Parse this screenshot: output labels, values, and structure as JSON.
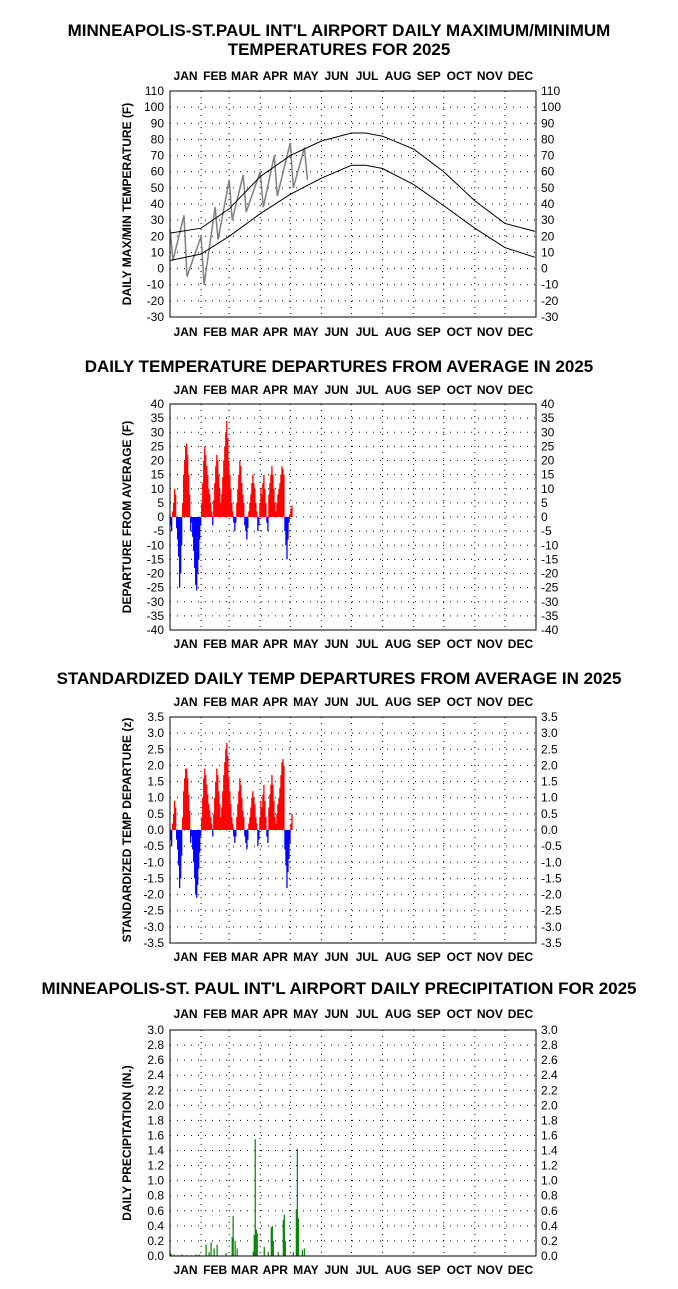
{
  "chart_data": [
    {
      "type": "line",
      "title_lines": [
        "MINNEAPOLIS-ST.PAUL INT'L AIRPORT DAILY MAXIMUM/MINIMUM",
        "TEMPERATURES FOR 2025"
      ],
      "ylabel": "DAILY MAX/MIN TEMPERATURE (F)",
      "months": [
        "JAN",
        "FEB",
        "MAR",
        "APR",
        "MAY",
        "JUN",
        "JUL",
        "AUG",
        "SEP",
        "OCT",
        "NOV",
        "DEC"
      ],
      "ylim": [
        -30,
        110
      ],
      "yticks": [
        "110",
        "100",
        "90",
        "80",
        "70",
        "60",
        "50",
        "40",
        "30",
        "20",
        "10",
        "0",
        "-10",
        "-20",
        "-30"
      ],
      "grid": true,
      "series": [
        {
          "role": "observed-high-low",
          "color": "#808080",
          "x": [
            1,
            15,
            32,
            46,
            60,
            74,
            91,
            105,
            121,
            135
          ],
          "high": [
            25,
            33,
            20,
            38,
            55,
            58,
            60,
            70,
            78,
            75
          ],
          "low": [
            5,
            -5,
            -10,
            18,
            30,
            35,
            38,
            45,
            50,
            55
          ]
        },
        {
          "role": "normal-high",
          "color": "#000000",
          "x": [
            1,
            32,
            60,
            91,
            121,
            152,
            182,
            196,
            213,
            244,
            274,
            305,
            335,
            365
          ],
          "values": [
            22,
            25,
            37,
            57,
            70,
            79,
            84,
            84,
            82,
            74,
            60,
            42,
            28,
            23
          ]
        },
        {
          "role": "normal-low",
          "color": "#000000",
          "x": [
            1,
            32,
            60,
            91,
            121,
            152,
            182,
            196,
            213,
            244,
            274,
            305,
            335,
            365
          ],
          "values": [
            5,
            9,
            20,
            34,
            46,
            56,
            64,
            64,
            62,
            52,
            39,
            25,
            13,
            7
          ]
        }
      ]
    },
    {
      "type": "bar",
      "title_lines": [
        "DAILY TEMPERATURE DEPARTURES FROM AVERAGE IN 2025"
      ],
      "ylabel": "DEPARTURE FROM AVERAGE (F)",
      "months": [
        "JAN",
        "FEB",
        "MAR",
        "APR",
        "MAY",
        "JUN",
        "JUL",
        "AUG",
        "SEP",
        "OCT",
        "NOV",
        "DEC"
      ],
      "ylim": [
        -40,
        40
      ],
      "yticks": [
        "40",
        "35",
        "30",
        "25",
        "20",
        "15",
        "10",
        "5",
        "0",
        "-5",
        "-10",
        "-15",
        "-20",
        "-25",
        "-30",
        "-35",
        "-40"
      ],
      "grid": true,
      "positive_color": "#ff0000",
      "negative_color": "#0000ff",
      "x_start_day": 1,
      "values": [
        -3,
        -5,
        2,
        5,
        10,
        8,
        -4,
        -8,
        -14,
        -25,
        -20,
        -10,
        5,
        15,
        20,
        25,
        26,
        22,
        15,
        8,
        -5,
        -2,
        -7,
        -12,
        -18,
        -24,
        -26,
        -20,
        -15,
        -8,
        -3,
        5,
        12,
        20,
        25,
        22,
        18,
        15,
        10,
        8,
        5,
        2,
        -3,
        6,
        12,
        18,
        22,
        20,
        15,
        10,
        5,
        8,
        14,
        20,
        25,
        30,
        34,
        28,
        20,
        15,
        10,
        5,
        2,
        -2,
        -5,
        -2,
        5,
        10,
        15,
        20,
        18,
        12,
        8,
        5,
        -3,
        -5,
        -8,
        -4,
        2,
        5,
        8,
        12,
        15,
        12,
        10,
        5,
        2,
        -5,
        -3,
        5,
        10,
        8,
        12,
        15,
        10,
        5,
        -2,
        -5,
        8,
        12,
        15,
        18,
        15,
        10,
        5,
        2,
        5,
        8,
        10,
        12,
        15,
        18,
        17,
        15,
        -5,
        -10,
        -15,
        -8,
        -2,
        1,
        3,
        4
      ]
    },
    {
      "type": "bar",
      "title_lines": [
        "STANDARDIZED DAILY TEMP DEPARTURES FROM AVERAGE IN 2025"
      ],
      "ylabel": "STANDARDIZED TEMP DEPARTURE (z)",
      "months": [
        "JAN",
        "FEB",
        "MAR",
        "APR",
        "MAY",
        "JUN",
        "JUL",
        "AUG",
        "SEP",
        "OCT",
        "NOV",
        "DEC"
      ],
      "ylim": [
        -3.5,
        3.5
      ],
      "yticks": [
        "3.5",
        "3.0",
        "2.5",
        "2.0",
        "1.5",
        "1.0",
        "0.5",
        "0.0",
        "-0.5",
        "-1.0",
        "-1.5",
        "-2.0",
        "-2.5",
        "-3.0",
        "-3.5"
      ],
      "grid": true,
      "positive_color": "#ff0000",
      "negative_color": "#0000ff",
      "x_start_day": 1,
      "values": [
        -0.3,
        -0.5,
        0.2,
        0.5,
        0.9,
        0.7,
        -0.3,
        -0.6,
        -1.1,
        -1.8,
        -1.5,
        -0.8,
        0.4,
        1.2,
        1.6,
        1.9,
        1.9,
        1.6,
        1.1,
        0.6,
        -0.4,
        -0.2,
        -0.6,
        -1.0,
        -1.5,
        -2.0,
        -2.1,
        -1.7,
        -1.2,
        -0.7,
        -0.2,
        0.4,
        1.0,
        1.6,
        1.9,
        1.7,
        1.4,
        1.1,
        0.8,
        0.6,
        0.4,
        0.2,
        -0.2,
        0.5,
        1.0,
        1.5,
        1.9,
        1.7,
        1.2,
        0.8,
        0.4,
        0.7,
        1.2,
        1.7,
        2.1,
        2.5,
        2.7,
        2.3,
        1.6,
        1.2,
        0.8,
        0.4,
        0.2,
        -0.2,
        -0.4,
        -0.2,
        0.4,
        0.8,
        1.2,
        1.6,
        1.4,
        1.0,
        0.6,
        0.4,
        -0.2,
        -0.4,
        -0.6,
        -0.3,
        0.2,
        0.4,
        0.7,
        1.0,
        1.2,
        1.0,
        0.8,
        0.4,
        0.2,
        -0.5,
        -0.3,
        0.4,
        0.9,
        0.7,
        1.1,
        1.4,
        0.9,
        0.4,
        -0.2,
        -0.4,
        0.7,
        1.1,
        1.4,
        1.7,
        1.4,
        0.9,
        0.4,
        0.2,
        0.5,
        0.8,
        1.0,
        1.3,
        1.7,
        2.1,
        2.2,
        2.0,
        -0.6,
        -1.1,
        -1.8,
        -1.3,
        -0.9,
        -0.4,
        0.2,
        0.5
      ]
    },
    {
      "type": "bar",
      "title_lines": [
        "MINNEAPOLIS-ST. PAUL INT'L AIRPORT DAILY PRECIPITATION FOR 2025"
      ],
      "ylabel": "DAILY PRECIPITATION (IN.)",
      "months": [
        "JAN",
        "FEB",
        "MAR",
        "APR",
        "MAY",
        "JUN",
        "JUL",
        "AUG",
        "SEP",
        "OCT",
        "NOV",
        "DEC"
      ],
      "ylim": [
        0,
        3.0
      ],
      "yticks": [
        "3.0",
        "2.8",
        "2.6",
        "2.4",
        "2.2",
        "2.0",
        "1.8",
        "1.6",
        "1.4",
        "1.2",
        "1.0",
        "0.8",
        "0.6",
        "0.4",
        "0.2",
        "0.0"
      ],
      "grid": true,
      "positive_color": "#008000",
      "points": [
        {
          "day": 1,
          "value": 0.05
        },
        {
          "day": 2,
          "value": 0.03
        },
        {
          "day": 5,
          "value": 0.02
        },
        {
          "day": 9,
          "value": 0.01
        },
        {
          "day": 13,
          "value": 0.02
        },
        {
          "day": 18,
          "value": 0.01
        },
        {
          "day": 22,
          "value": 0.01
        },
        {
          "day": 27,
          "value": 0.02
        },
        {
          "day": 30,
          "value": 0.02
        },
        {
          "day": 37,
          "value": 0.15
        },
        {
          "day": 40,
          "value": 0.05
        },
        {
          "day": 42,
          "value": 0.18
        },
        {
          "day": 45,
          "value": 0.1
        },
        {
          "day": 48,
          "value": 0.15
        },
        {
          "day": 57,
          "value": 0.04
        },
        {
          "day": 63,
          "value": 0.25
        },
        {
          "day": 64,
          "value": 0.53
        },
        {
          "day": 66,
          "value": 0.2
        },
        {
          "day": 68,
          "value": 0.1
        },
        {
          "day": 84,
          "value": 0.06
        },
        {
          "day": 85,
          "value": 0.28
        },
        {
          "day": 86,
          "value": 1.55
        },
        {
          "day": 87,
          "value": 0.35
        },
        {
          "day": 88,
          "value": 0.3
        },
        {
          "day": 95,
          "value": 0.12
        },
        {
          "day": 99,
          "value": 0.05
        },
        {
          "day": 102,
          "value": 0.38
        },
        {
          "day": 103,
          "value": 0.4
        },
        {
          "day": 104,
          "value": 0.2
        },
        {
          "day": 109,
          "value": 0.05
        },
        {
          "day": 114,
          "value": 0.48
        },
        {
          "day": 115,
          "value": 0.55
        },
        {
          "day": 116,
          "value": 0.2
        },
        {
          "day": 124,
          "value": 0.05
        },
        {
          "day": 127,
          "value": 0.62
        },
        {
          "day": 128,
          "value": 1.42
        },
        {
          "day": 129,
          "value": 0.5
        },
        {
          "day": 133,
          "value": 0.08
        },
        {
          "day": 135,
          "value": 0.1
        }
      ]
    }
  ]
}
